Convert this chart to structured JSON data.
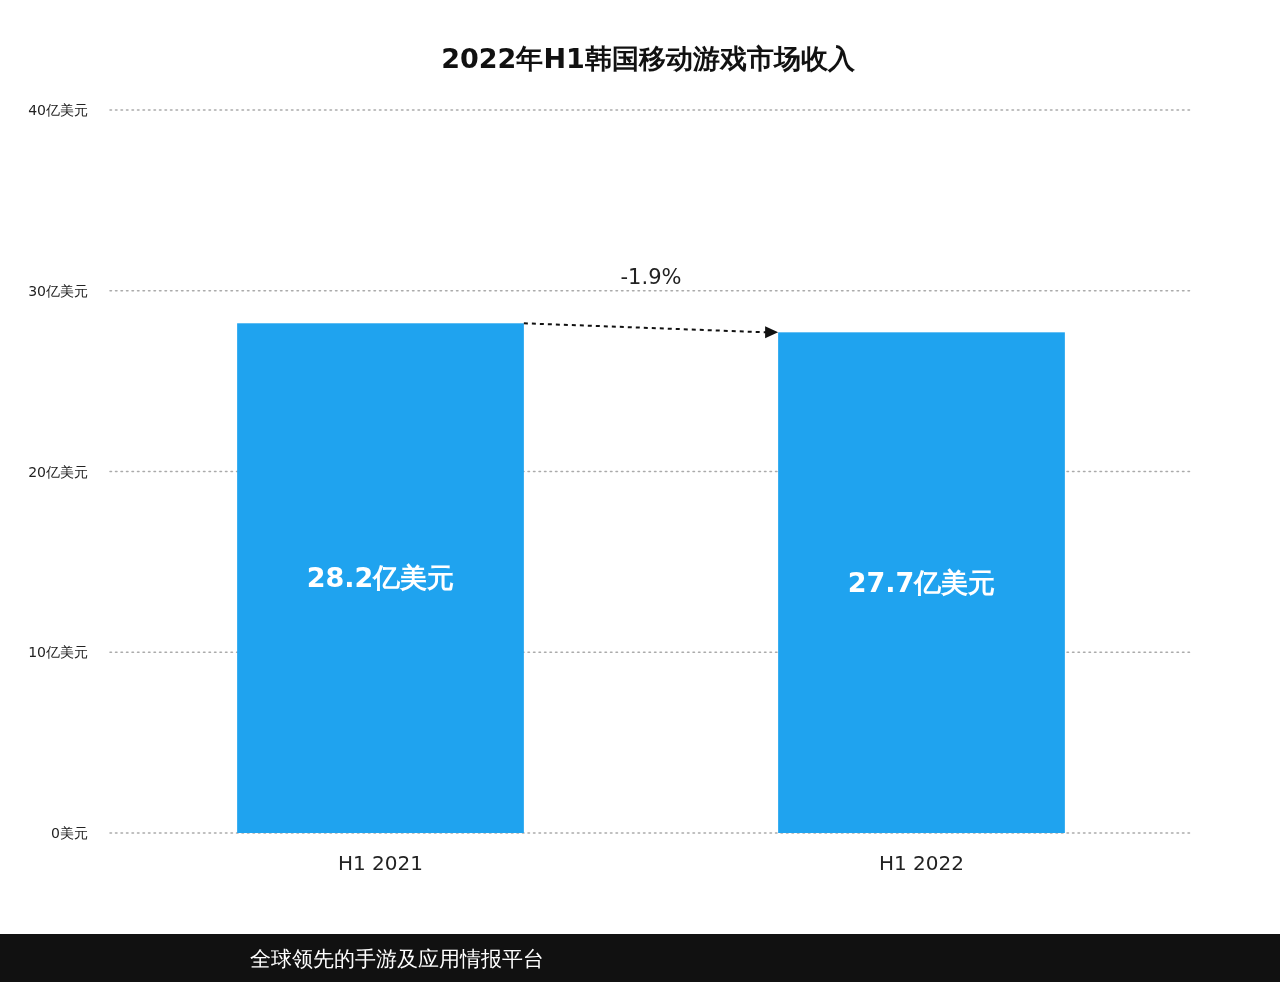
{
  "chart_data": {
    "type": "bar",
    "title": "2022年H1韩国移动游戏市场收入",
    "categories": [
      "H1 2021",
      "H1 2022"
    ],
    "values": [
      28.2,
      27.7
    ],
    "value_labels": [
      "28.2亿美元",
      "27.7亿美元"
    ],
    "color": "#1fa3ef",
    "ylim": [
      0,
      40
    ],
    "yticks": [
      {
        "value": 0,
        "label": "0美元"
      },
      {
        "value": 10,
        "label": "10亿美元"
      },
      {
        "value": 20,
        "label": "20亿美元"
      },
      {
        "value": 30,
        "label": "30亿美元"
      },
      {
        "value": 40,
        "label": "40亿美元"
      }
    ],
    "grid": "y",
    "annotations": [
      "-1.9%",
      "全球领先的手游及应用情报平台"
    ]
  }
}
